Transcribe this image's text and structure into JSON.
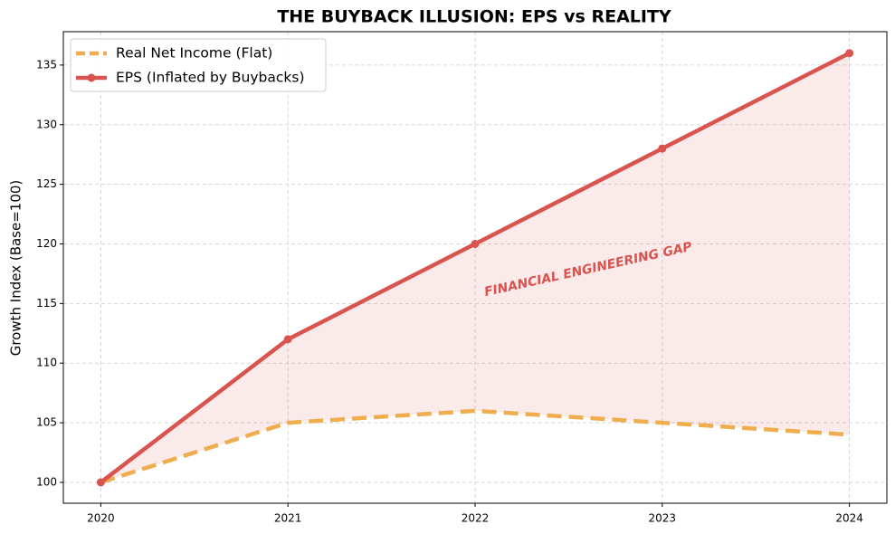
{
  "chart_data": {
    "type": "line",
    "title": "THE BUYBACK ILLUSION: EPS vs REALITY",
    "y_label": "Growth Index (Base=100)",
    "annotation": "FINANCIAL ENGINEERING GAP",
    "x": [
      2020,
      2021,
      2022,
      2023,
      2024
    ],
    "series": [
      {
        "name": "Real Net Income (Flat)",
        "color": "#f0ad4e",
        "dashed": true,
        "markers": false,
        "values": [
          100,
          105,
          106,
          105,
          104
        ]
      },
      {
        "name": "EPS (Inflated by Buybacks)",
        "color": "#d9534f",
        "dashed": false,
        "markers": true,
        "values": [
          100,
          112,
          120,
          128,
          136
        ]
      }
    ],
    "fill_between": true,
    "fill_color": "#d9534f",
    "xlim": [
      2019.8,
      2024.2
    ],
    "ylim": [
      98.25,
      137.8
    ],
    "xticks": [
      2020,
      2021,
      2022,
      2023,
      2024
    ],
    "yticks": [
      100,
      105,
      110,
      115,
      120,
      125,
      130,
      135
    ],
    "grid": true,
    "legend": "upper-left"
  }
}
